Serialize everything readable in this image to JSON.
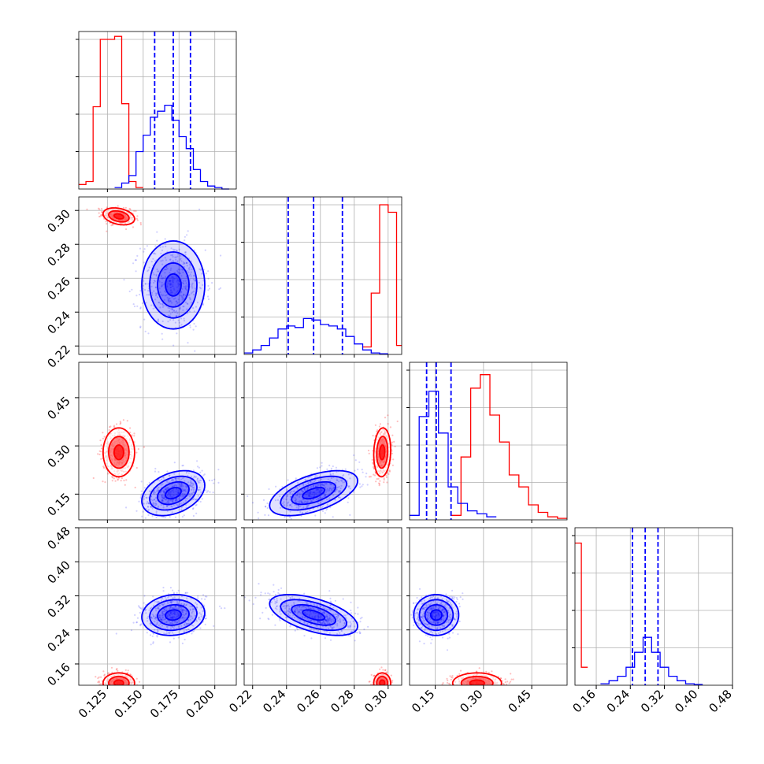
{
  "chart_data": {
    "type": "corner",
    "grid": true,
    "colors": {
      "reference": "#ff0000",
      "posterior": "#0000ff"
    },
    "parameters": [
      {
        "ticks": [
          "0.125",
          "0.150",
          "0.175",
          "0.200"
        ],
        "tick_values": [
          0.125,
          0.15,
          0.175,
          0.2
        ],
        "range": [
          0.105,
          0.215
        ]
      },
      {
        "ticks": [
          "0.22",
          "0.24",
          "0.26",
          "0.28",
          "0.30"
        ],
        "tick_values": [
          0.22,
          0.24,
          0.26,
          0.28,
          0.3
        ],
        "range": [
          0.215,
          0.308
        ]
      },
      {
        "ticks": [
          "0.15",
          "0.30",
          "0.45"
        ],
        "tick_values": [
          0.15,
          0.3,
          0.45
        ],
        "range": [
          0.07,
          0.56
        ]
      },
      {
        "ticks": [
          "0.16",
          "0.24",
          "0.32",
          "0.40",
          "0.48"
        ],
        "tick_values": [
          0.16,
          0.24,
          0.32,
          0.4,
          0.48
        ],
        "range": [
          0.11,
          0.48
        ]
      }
    ],
    "quantiles": [
      {
        "lower": 0.158,
        "median": 0.171,
        "upper": 0.183
      },
      {
        "lower": 0.241,
        "median": 0.256,
        "upper": 0.273
      },
      {
        "lower": 0.123,
        "median": 0.153,
        "upper": 0.199
      },
      {
        "lower": 0.245,
        "median": 0.275,
        "upper": 0.305
      }
    ],
    "histograms": [
      {
        "red": {
          "edges": [
            0.105,
            0.11,
            0.115,
            0.12,
            0.125,
            0.13,
            0.135,
            0.14,
            0.145,
            0.15
          ],
          "counts": [
            0.03,
            0.05,
            0.55,
            1.0,
            1.0,
            1.02,
            0.57,
            0.05,
            0.01
          ]
        },
        "blue": {
          "edges": [
            0.13,
            0.135,
            0.14,
            0.145,
            0.15,
            0.155,
            0.16,
            0.165,
            0.17,
            0.175,
            0.18,
            0.185,
            0.19,
            0.195,
            0.2,
            0.205,
            0.21
          ],
          "counts": [
            0.01,
            0.04,
            0.09,
            0.25,
            0.36,
            0.48,
            0.52,
            0.56,
            0.46,
            0.35,
            0.27,
            0.13,
            0.05,
            0.02,
            0.01,
            0.0
          ]
        }
      },
      {
        "red": {
          "edges": [
            0.285,
            0.29,
            0.295,
            0.3,
            0.305,
            0.308
          ],
          "counts": [
            0.05,
            0.41,
            1.0,
            0.95,
            0.06
          ]
        },
        "blue": {
          "edges": [
            0.215,
            0.22,
            0.225,
            0.23,
            0.235,
            0.24,
            0.245,
            0.25,
            0.255,
            0.26,
            0.265,
            0.27,
            0.275,
            0.28,
            0.285,
            0.29,
            0.295,
            0.3
          ],
          "counts": [
            0.01,
            0.03,
            0.06,
            0.11,
            0.17,
            0.19,
            0.18,
            0.24,
            0.23,
            0.2,
            0.19,
            0.17,
            0.12,
            0.07,
            0.03,
            0.01,
            0.005
          ]
        }
      },
      {
        "red": {
          "edges": [
            0.2,
            0.23,
            0.26,
            0.29,
            0.32,
            0.35,
            0.38,
            0.41,
            0.44,
            0.47,
            0.5,
            0.53,
            0.56
          ],
          "counts": [
            0.03,
            0.42,
            0.88,
            0.97,
            0.7,
            0.52,
            0.3,
            0.22,
            0.1,
            0.05,
            0.02,
            0.01
          ]
        },
        "blue": {
          "edges": [
            0.07,
            0.1,
            0.13,
            0.16,
            0.19,
            0.22,
            0.25,
            0.28,
            0.31,
            0.34
          ],
          "counts": [
            0.03,
            0.69,
            0.86,
            0.58,
            0.22,
            0.11,
            0.06,
            0.04,
            0.02
          ]
        }
      },
      {
        "red": {
          "edges": [
            0.11,
            0.125,
            0.14
          ],
          "counts": [
            0.95,
            0.12
          ]
        },
        "blue": {
          "edges": [
            0.17,
            0.19,
            0.21,
            0.23,
            0.25,
            0.27,
            0.29,
            0.31,
            0.33,
            0.35,
            0.37,
            0.39,
            0.41
          ],
          "counts": [
            0.01,
            0.03,
            0.06,
            0.12,
            0.22,
            0.32,
            0.22,
            0.12,
            0.06,
            0.03,
            0.01,
            0.005
          ]
        }
      }
    ],
    "distributions": {
      "red": {
        "mean": [
          0.133,
          0.2965,
          0.28,
          0.115
        ],
        "sd": [
          0.0055,
          0.0025,
          0.038,
          0.012
        ],
        "corr_12": 0.0
      },
      "blue": {
        "mean": [
          0.171,
          0.256,
          0.153,
          0.275
        ],
        "sd": [
          0.011,
          0.013,
          0.035,
          0.024
        ]
      }
    },
    "scatter_points_per_panel": 500
  }
}
